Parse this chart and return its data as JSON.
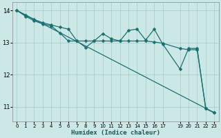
{
  "xlabel": "Humidex (Indice chaleur)",
  "background_color": "#cce8e6",
  "grid_color": "#aad0ce",
  "line_color": "#1a7070",
  "xlim": [
    -0.5,
    23.5
  ],
  "ylim": [
    10.55,
    14.25
  ],
  "xticks": [
    0,
    1,
    2,
    3,
    4,
    5,
    6,
    7,
    8,
    9,
    10,
    11,
    12,
    13,
    14,
    15,
    16,
    17,
    19,
    20,
    21,
    22,
    23
  ],
  "yticks": [
    11,
    12,
    13,
    14
  ],
  "line1_x": [
    0,
    1,
    2,
    3,
    4,
    5,
    6,
    7,
    8,
    9,
    10,
    11,
    12,
    13,
    14,
    15,
    16,
    17,
    19,
    20,
    21,
    22,
    23
  ],
  "line1_y": [
    14.0,
    13.85,
    13.72,
    13.62,
    13.55,
    13.48,
    13.42,
    13.05,
    13.05,
    13.05,
    13.05,
    13.05,
    13.05,
    13.05,
    13.05,
    13.05,
    13.02,
    12.98,
    12.82,
    12.78,
    12.78,
    10.95,
    10.82
  ],
  "line2_x": [
    0,
    1,
    2,
    3,
    4,
    5,
    6,
    7,
    8,
    9,
    10,
    11,
    12,
    13,
    14,
    15,
    16,
    17,
    19,
    20,
    21,
    22,
    23
  ],
  "line2_y": [
    14.0,
    13.82,
    13.68,
    13.58,
    13.52,
    13.3,
    13.05,
    13.05,
    12.85,
    13.05,
    13.28,
    13.12,
    13.05,
    13.38,
    13.42,
    13.08,
    13.42,
    12.95,
    12.18,
    12.82,
    12.82,
    10.95,
    10.82
  ],
  "line3_x": [
    0,
    23
  ],
  "line3_y": [
    14.0,
    10.82
  ],
  "markersize": 2.5,
  "linewidth": 0.9
}
